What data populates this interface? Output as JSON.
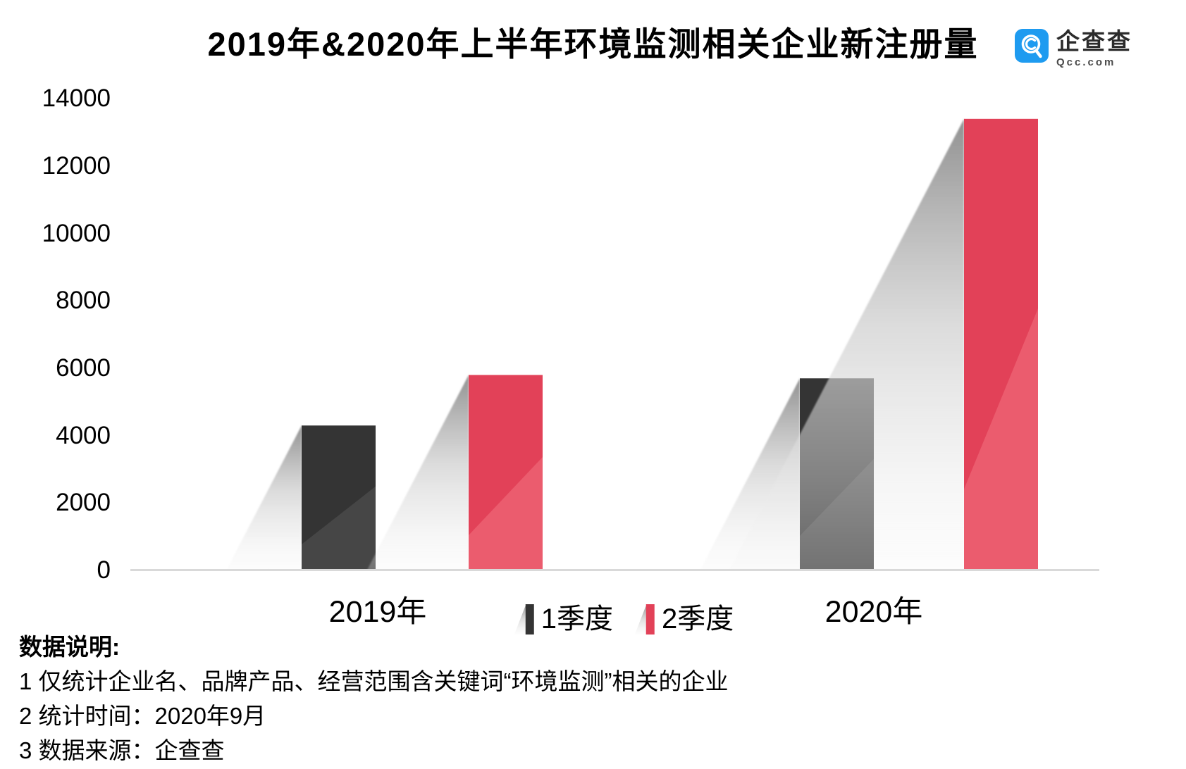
{
  "title": "2019年&2020年上半年环境监测相关企业新注册量",
  "logo": {
    "name": "企查查",
    "domain": "Qcc.com",
    "brand_color": "#1e9bf0"
  },
  "chart_data": {
    "type": "bar",
    "title": "2019年&2020年上半年环境监测相关企业新注册量",
    "categories": [
      "2019年",
      "2020年"
    ],
    "series": [
      {
        "name": "1季度",
        "color": "#343434",
        "color_light": "#464646",
        "values": [
          4300,
          5700
        ]
      },
      {
        "name": "2季度",
        "color": "#e24158",
        "color_light": "#eb5c6e",
        "values": [
          5800,
          13400
        ]
      }
    ],
    "xlabel": "",
    "ylabel": "",
    "ylim": [
      0,
      14000
    ],
    "yticks": [
      0,
      2000,
      4000,
      6000,
      8000,
      10000,
      12000,
      14000
    ],
    "grid": false,
    "legend_position": "bottom-center"
  },
  "notes": {
    "heading": "数据说明:",
    "items": [
      "1 仅统计企业名、品牌产品、经营范围含关键词“环境监测”相关的企业",
      "2 统计时间：2020年9月",
      "3 数据来源：企查查"
    ]
  }
}
